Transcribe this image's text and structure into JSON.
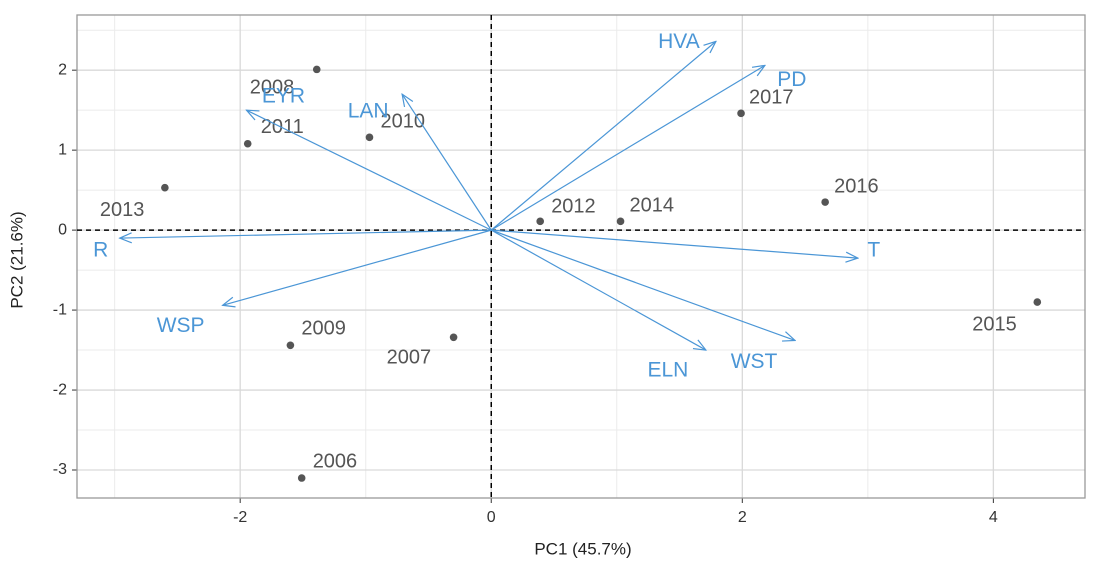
{
  "chart_data": {
    "type": "biplot",
    "xlabel": "PC1 (45.7%)",
    "ylabel": "PC2 (21.6%)",
    "xlim": [
      -3.3,
      4.73
    ],
    "ylim": [
      -3.35,
      2.69
    ],
    "xticks": [
      -2,
      0,
      2,
      4
    ],
    "yticks": [
      -3,
      -2,
      -1,
      0,
      1,
      2
    ],
    "grid": true,
    "points": {
      "color": "#555555",
      "labels": [
        "2008",
        "2011",
        "2010",
        "2013",
        "2017",
        "2016",
        "2012",
        "2014",
        "2015",
        "2009",
        "2007",
        "2006"
      ],
      "x": [
        -1.39,
        -1.94,
        -0.97,
        -2.6,
        1.99,
        2.66,
        0.39,
        1.03,
        4.35,
        -1.6,
        -0.3,
        -1.51
      ],
      "y": [
        2.01,
        1.08,
        1.16,
        0.53,
        1.46,
        0.35,
        0.11,
        0.11,
        -0.9,
        -1.44,
        -1.34,
        -3.1
      ]
    },
    "loadings": {
      "color": "#4b96d6",
      "labels": [
        "HVA",
        "PD",
        "LAN",
        "EYR",
        "R",
        "WSP",
        "T",
        "ELN",
        "WST"
      ],
      "x": [
        1.79,
        2.18,
        -0.71,
        -1.95,
        -2.96,
        -2.14,
        2.92,
        1.71,
        2.42
      ],
      "y": [
        2.36,
        2.06,
        1.7,
        1.5,
        -0.1,
        -0.94,
        -0.35,
        -1.5,
        -1.38
      ]
    }
  }
}
